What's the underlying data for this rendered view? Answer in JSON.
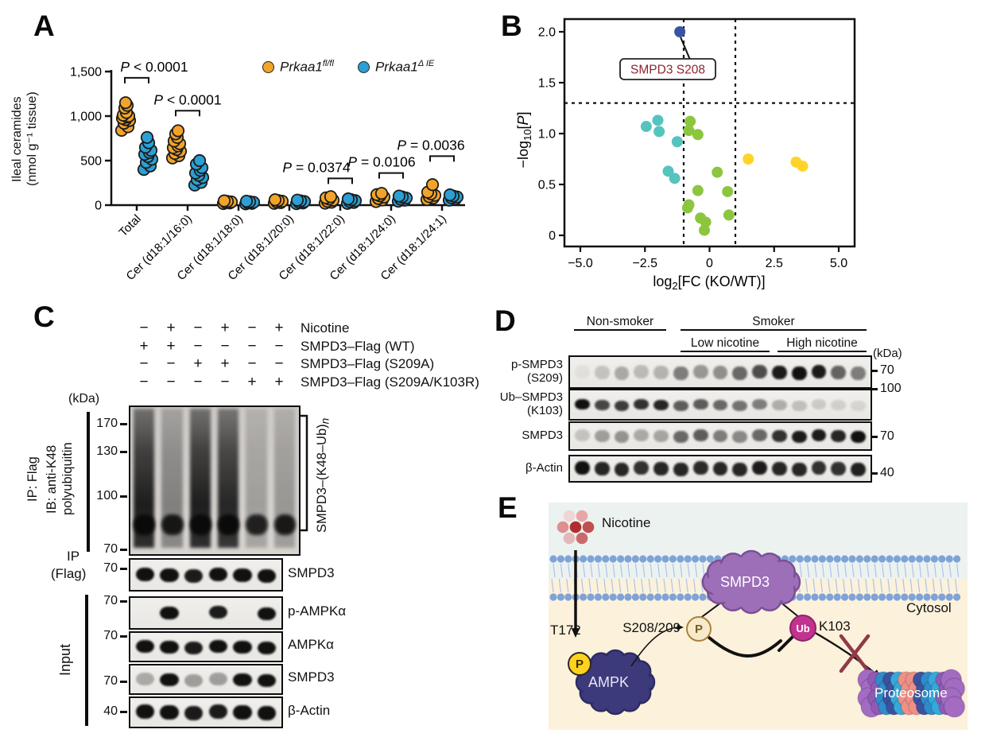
{
  "figure": {
    "A": {
      "label": "A",
      "ylabel1": "Ileal ceramides",
      "ylabel2": "(nmol g⁻¹ tissue)",
      "legend": [
        {
          "base": "Prkaa1",
          "sup": "fl/fl",
          "color": "#F2A42A"
        },
        {
          "base": "Prkaa1",
          "sup": "Δ IE",
          "color": "#2C9FD4"
        }
      ],
      "chart_data": {
        "type": "scatter",
        "categories": [
          "Total",
          "Cer (d18:1/16:0)",
          "Cer (d18:1/18:0)",
          "Cer (d18:1/20:0)",
          "Cer (d18:1/22:0)",
          "Cer (d18:1/24:0)",
          "Cer (d18:1/24:1)"
        ],
        "ylim": [
          0,
          1500
        ],
        "yticks": [
          {
            "v": 0,
            "label": "0"
          },
          {
            "v": 500,
            "label": "500"
          },
          {
            "v": 1000,
            "label": "1,000"
          },
          {
            "v": 1500,
            "label": "1,500"
          }
        ],
        "series": [
          {
            "name": "Prkaa1 fl/fl",
            "color": "#F2A42A",
            "outline": "#1c1c1c",
            "values_by_category": [
              [
                840,
                880,
                920,
                950,
                960,
                975,
                990,
                1000,
                1010,
                1040,
                1090,
                1120,
                1150
              ],
              [
                530,
                555,
                580,
                605,
                625,
                645,
                665,
                690,
                720,
                760,
                800,
                835
              ],
              [
                18,
                24,
                30,
                36,
                42,
                48
              ],
              [
                20,
                28,
                36,
                44,
                52,
                60
              ],
              [
                22,
                32,
                42,
                55,
                68,
                82,
                95
              ],
              [
                40,
                58,
                74,
                90,
                104,
                118,
                132
              ],
              [
                62,
                80,
                95,
                110,
                126,
                145,
                230
              ]
            ]
          },
          {
            "name": "Prkaa1 Δ IE",
            "color": "#2C9FD4",
            "outline": "#1c1c1c",
            "values_by_category": [
              [
                400,
                440,
                480,
                515,
                545,
                570,
                590,
                615,
                650,
                700,
                760
              ],
              [
                225,
                255,
                285,
                310,
                335,
                360,
                390,
                420,
                460,
                500
              ],
              [
                14,
                20,
                26,
                32,
                38,
                44
              ],
              [
                16,
                24,
                32,
                40,
                48,
                56
              ],
              [
                20,
                30,
                40,
                50,
                60,
                70
              ],
              [
                44,
                56,
                68,
                80,
                92,
                102
              ],
              [
                56,
                70,
                82,
                92,
                102,
                115
              ]
            ]
          }
        ],
        "annotations": [
          {
            "p": "P",
            "rest": " < 0.0001",
            "cat": 0,
            "bracket_y": 1430,
            "dx": 22
          },
          {
            "p": "P",
            "rest": " < 0.0001",
            "cat": 1,
            "bracket_y": 1060,
            "dx": 0
          },
          {
            "p": "P",
            "rest": " = 0.0374",
            "cat": 4,
            "bracket_y": 300,
            "dx": -30
          },
          {
            "p": "P",
            "rest": " = 0.0106",
            "cat": 5,
            "bracket_y": 360,
            "dx": -12
          },
          {
            "p": "P",
            "rest": " = 0.0036",
            "cat": 6,
            "bracket_y": 550,
            "dx": -14
          }
        ]
      }
    },
    "B": {
      "label": "B",
      "chart_data": {
        "type": "scatter",
        "xlabel_parts": [
          {
            "t": "log"
          },
          {
            "t": "2",
            "sub": true
          },
          {
            "t": "[FC (KO/WT)]"
          }
        ],
        "ylabel_parts": [
          {
            "t": "−log"
          },
          {
            "t": "10",
            "sub": true
          },
          {
            "t": "["
          },
          {
            "t": "P",
            "italic": true
          },
          {
            "t": "]"
          }
        ],
        "xlim": [
          -5.9,
          5.9
        ],
        "ylim": [
          -0.12,
          2.08
        ],
        "xticks": [
          {
            "v": -5,
            "label": "−5.0"
          },
          {
            "v": -2.5,
            "label": "−2.5"
          },
          {
            "v": 0,
            "label": "0"
          },
          {
            "v": 2.5,
            "label": "2.5"
          },
          {
            "v": 5,
            "label": "5.0"
          }
        ],
        "yticks": [
          {
            "v": 0,
            "label": "0"
          },
          {
            "v": 0.5,
            "label": "0.5"
          },
          {
            "v": 1,
            "label": "1.0"
          },
          {
            "v": 1.5,
            "label": "1.5"
          },
          {
            "v": 2,
            "label": "2.0"
          }
        ],
        "hline": 1.3,
        "vlines": [
          -1,
          1
        ],
        "groups": [
          {
            "name": "highlight",
            "color": "#3A53A4",
            "points": [
              [
                -1.15,
                2.0
              ]
            ]
          },
          {
            "name": "teal",
            "color": "#56C4BE",
            "points": [
              [
                -2.45,
                1.07
              ],
              [
                -2.0,
                1.13
              ],
              [
                -1.95,
                1.02
              ],
              [
                -1.25,
                0.92
              ],
              [
                -1.6,
                0.63
              ],
              [
                -1.35,
                0.56
              ]
            ]
          },
          {
            "name": "green",
            "color": "#8CC63F",
            "points": [
              [
                -0.75,
                1.12
              ],
              [
                -0.8,
                1.03
              ],
              [
                -0.45,
                0.99
              ],
              [
                0.3,
                0.62
              ],
              [
                -0.45,
                0.44
              ],
              [
                0.7,
                0.43
              ],
              [
                -0.8,
                0.3
              ],
              [
                -0.85,
                0.27
              ],
              [
                -0.35,
                0.17
              ],
              [
                -0.15,
                0.13
              ],
              [
                0.75,
                0.2
              ],
              [
                -0.2,
                0.05
              ]
            ]
          },
          {
            "name": "yellow",
            "color": "#FFD428",
            "points": [
              [
                1.5,
                0.75
              ],
              [
                3.35,
                0.72
              ],
              [
                3.6,
                0.68
              ]
            ]
          }
        ],
        "callout": {
          "label": "SMPD3 S208",
          "label_color": "#8E2430",
          "point": [
            -1.15,
            2.0
          ]
        }
      }
    },
    "C": {
      "label": "C",
      "conditions": [
        {
          "signs": [
            "−",
            "+",
            "−",
            "+",
            "−",
            "+"
          ],
          "label": "Nicotine"
        },
        {
          "signs": [
            "+",
            "+",
            "−",
            "−",
            "−",
            "−"
          ],
          "label": "SMPD3–Flag (WT)"
        },
        {
          "signs": [
            "−",
            "−",
            "+",
            "+",
            "−",
            "−"
          ],
          "label": "SMPD3–Flag (S209A)"
        },
        {
          "signs": [
            "−",
            "−",
            "−",
            "−",
            "+",
            "+"
          ],
          "label": "SMPD3–Flag (S209A/K103R)"
        }
      ],
      "kda_label": "(kDa)",
      "ip_side_lines": [
        "IP: Flag",
        "IB: anti-K48",
        "polyubiquitin"
      ],
      "main_blot": {
        "markers": [
          {
            "v": "170"
          },
          {
            "v": "130"
          },
          {
            "v": "100"
          },
          {
            "v": "70"
          }
        ],
        "lanes": [
          {
            "smear": 1,
            "band": 1
          },
          {
            "smear": 0.45,
            "band": 0.9
          },
          {
            "smear": 1,
            "band": 1
          },
          {
            "smear": 0.95,
            "band": 1
          },
          {
            "smear": 0.28,
            "band": 0.85
          },
          {
            "smear": 0.32,
            "band": 0.9
          }
        ]
      },
      "bracket_label_main": "SMPD3–(K48–Ub)",
      "bracket_label_sub": "n",
      "ip_flag_line1": "IP",
      "ip_flag_line2": "(Flag)",
      "ip_flag_row": {
        "kda": "70",
        "label": "SMPD3",
        "bands": [
          1,
          1,
          0.95,
          1,
          1,
          1
        ]
      },
      "input_label": "Input",
      "input_rows": [
        {
          "kda": "70",
          "label": "p-AMPKα",
          "bands": [
            0,
            1,
            0,
            0.95,
            0,
            1
          ]
        },
        {
          "kda": "70",
          "label": "AMPKα",
          "bands": [
            1,
            1,
            0.95,
            1,
            1,
            1
          ]
        },
        {
          "kda": "70",
          "label": "SMPD3",
          "bands": [
            0.3,
            1,
            0.35,
            0.35,
            1,
            1
          ]
        },
        {
          "kda": "40",
          "label": "β-Actin",
          "bands": [
            1,
            1,
            0.95,
            0.95,
            1,
            1
          ]
        }
      ]
    },
    "D": {
      "label": "D",
      "group_nonsmoker": "Non-smoker",
      "group_smoker": "Smoker",
      "group_low": "Low nicotine",
      "group_high": "High nicotine",
      "kda_label": "(kDa)",
      "rows": [
        {
          "label_lines": [
            "p-SMPD3",
            "(S209)"
          ],
          "kda": "70",
          "bands": [
            0.05,
            0.18,
            0.3,
            0.22,
            0.25,
            0.5,
            0.38,
            0.42,
            0.6,
            0.72,
            0.95,
            1,
            0.95,
            0.62,
            0.5
          ]
        },
        {
          "label_lines": [
            "Ub–SMPD3",
            "(K103)"
          ],
          "kda": "100",
          "bands": [
            1,
            0.75,
            0.8,
            0.85,
            0.9,
            0.65,
            0.65,
            0.6,
            0.55,
            0.5,
            0.28,
            0.2,
            0.15,
            0.12,
            0.1
          ]
        },
        {
          "label_lines": [
            "SMPD3"
          ],
          "kda": "70",
          "bands": [
            0.18,
            0.35,
            0.4,
            0.3,
            0.32,
            0.6,
            0.65,
            0.5,
            0.45,
            0.6,
            0.85,
            0.95,
            0.95,
            0.9,
            1
          ]
        },
        {
          "label_lines": [
            "β-Actin"
          ],
          "kda": "40",
          "bands": [
            1,
            0.9,
            0.9,
            0.85,
            0.9,
            0.9,
            0.88,
            0.9,
            0.9,
            0.95,
            0.9,
            0.9,
            0.85,
            0.85,
            0.92
          ]
        }
      ]
    },
    "E": {
      "label": "E",
      "nicotine_label": "Nicotine",
      "cytosol_label": "Cytosol",
      "smpd3_label": "SMPD3",
      "site_p_label": "S208/209",
      "site_ub_label": "K103",
      "t172_label": "T172",
      "ampk_label": "AMPK",
      "proteosome_label": "Proteosome",
      "p_symbol": "P",
      "ub_symbol": "Ub",
      "colors": {
        "extracellular_bg": "#ECF2F0",
        "cytosol_bg": "#FCF1DB",
        "membrane": "#7FA3D7",
        "membrane_tail": "#AEC4E6",
        "smpd3": "#9C6FB8",
        "smpd3_edge": "#7B4F96",
        "ampk": "#3D3A7C",
        "ampk_edge": "#2E2B63",
        "p_gold": "#FFD21E",
        "p_tan_fill": "#F7EACB",
        "p_tan_border": "#A9813C",
        "ub": "#C23390",
        "ub_border": "#8E2368",
        "cross": "#8E3A47",
        "nicotine_dots": [
          "#AE2E2E",
          "#C05050",
          "#E8A7A7",
          "#F0D5D5",
          "#DE8F8F",
          "#E3B8B8",
          "#C96A6A"
        ],
        "proteosome_cols": [
          "#A36BC2",
          "#8F5BB5",
          "#2F8CCB",
          "#3B539F",
          "#36A9DA",
          "#EF9087",
          "#EF9087",
          "#3B539F",
          "#2F8CCB",
          "#36A9DA",
          "#8F5BB5",
          "#A36BC2"
        ]
      }
    }
  }
}
